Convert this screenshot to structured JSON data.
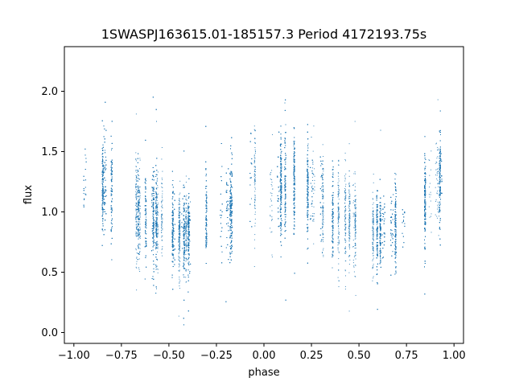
{
  "chart_data": {
    "type": "scatter",
    "title": "1SWASPJ163615.01-185157.3 Period 4172193.75s",
    "xlabel": "phase",
    "ylabel": "flux",
    "xlim": [
      -1.05,
      1.05
    ],
    "ylim": [
      -0.09,
      2.37
    ],
    "xticks": [
      -1.0,
      -0.75,
      -0.5,
      -0.25,
      0.0,
      0.25,
      0.5,
      0.75,
      1.0
    ],
    "xtick_labels": [
      "−1.00",
      "−0.75",
      "−0.50",
      "−0.25",
      "0.00",
      "0.25",
      "0.50",
      "0.75",
      "1.00"
    ],
    "yticks": [
      0.0,
      0.5,
      1.0,
      1.5,
      2.0
    ],
    "ytick_labels": [
      "0.0",
      "0.5",
      "1.0",
      "1.5",
      "2.0"
    ],
    "grid": false,
    "legend": "none",
    "marker_color": "#1f77b4",
    "series": [
      {
        "phase_coverage": [
          -1.0,
          1.0
        ],
        "profile": [
          {
            "phase": -1.0,
            "flux": 1.1,
            "spread": 0.2
          },
          {
            "phase": -0.82,
            "flux": 1.25,
            "spread": 0.2
          },
          {
            "phase": -0.6,
            "flux": 0.95,
            "spread": 0.2
          },
          {
            "phase": -0.42,
            "flux": 0.82,
            "spread": 0.17
          },
          {
            "phase": -0.2,
            "flux": 1.0,
            "spread": 0.2
          },
          {
            "phase": -0.05,
            "flux": 1.3,
            "spread": 0.2
          },
          {
            "phase": 0.0,
            "flux": 1.1,
            "spread": 0.2
          },
          {
            "phase": 0.18,
            "flux": 1.25,
            "spread": 0.2
          },
          {
            "phase": 0.4,
            "flux": 0.95,
            "spread": 0.2
          },
          {
            "phase": 0.58,
            "flux": 0.82,
            "spread": 0.17
          },
          {
            "phase": 0.8,
            "flux": 1.0,
            "spread": 0.2
          },
          {
            "phase": 0.95,
            "flux": 1.3,
            "spread": 0.2
          },
          {
            "phase": 1.0,
            "flux": 1.1,
            "spread": 0.2
          }
        ],
        "flux_range": [
          0.0,
          2.25
        ]
      }
    ]
  }
}
